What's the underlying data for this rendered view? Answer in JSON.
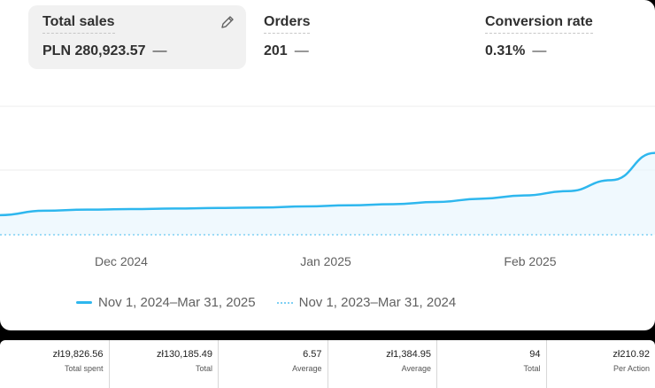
{
  "metrics": [
    {
      "label": "Total sales",
      "value": "PLN 280,923.57",
      "delta": "—"
    },
    {
      "label": "Orders",
      "value": "201",
      "delta": "—"
    },
    {
      "label": "Conversion rate",
      "value": "0.31%",
      "delta": "—"
    }
  ],
  "chart_data": {
    "type": "line",
    "x_tick_labels": [
      "Dec 2024",
      "Jan 2025",
      "Feb 2025"
    ],
    "series": [
      {
        "name": "Nov 1, 2024–Mar 31, 2025",
        "style": "solid",
        "color": "#2eb7ee",
        "values": [
          0.18,
          0.22,
          0.23,
          0.235,
          0.24,
          0.245,
          0.25,
          0.26,
          0.27,
          0.28,
          0.3,
          0.33,
          0.36,
          0.4,
          0.5,
          0.75
        ]
      },
      {
        "name": "Nov 1, 2023–Mar 31, 2024",
        "style": "dotted",
        "color": "#7fd0f4",
        "values": [
          0,
          0,
          0,
          0,
          0,
          0,
          0,
          0,
          0,
          0,
          0,
          0,
          0,
          0,
          0,
          0
        ]
      }
    ],
    "grid": true
  },
  "legend": [
    {
      "label": "Nov 1, 2024–Mar 31, 2025"
    },
    {
      "label": "Nov 1, 2023–Mar 31, 2024"
    }
  ],
  "stats": [
    {
      "value": "zł19,826.56",
      "label": "Total spent"
    },
    {
      "value": "zł130,185.49",
      "label": "Total"
    },
    {
      "value": "6.57",
      "label": "Average"
    },
    {
      "value": "zł1,384.95",
      "label": "Average"
    },
    {
      "value": "94",
      "label": "Total"
    },
    {
      "value": "zł210.92",
      "label": "Per Action"
    }
  ]
}
